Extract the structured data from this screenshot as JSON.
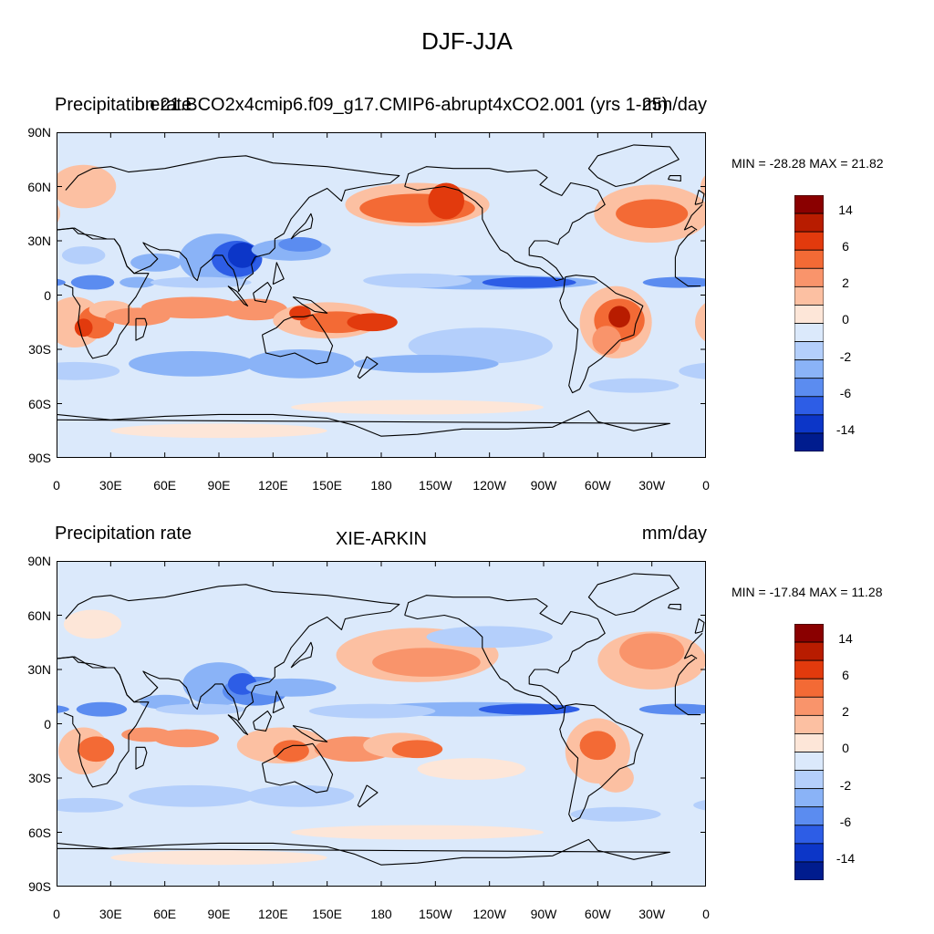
{
  "title": "DJF-JJA",
  "panels": [
    {
      "id": "top",
      "left_text": "Precipitation rate",
      "center_text": "b.e21.BCO2x4cmip6.f09_g17.CMIP6-abrupt4xCO2.001 (yrs 1-25)",
      "right_text": "mm/day",
      "minmax": "MIN = -28.28 MAX =  21.82"
    },
    {
      "id": "bottom",
      "left_text": "Precipitation rate",
      "center_text": "XIE-ARKIN",
      "right_text": "mm/day",
      "minmax": "MIN = -17.84 MAX =  11.28"
    }
  ],
  "lat_labels": [
    "90N",
    "60N",
    "30N",
    "0",
    "30S",
    "60S",
    "90S"
  ],
  "lon_labels": [
    "0",
    "30E",
    "60E",
    "90E",
    "120E",
    "150E",
    "180",
    "150W",
    "120W",
    "90W",
    "60W",
    "30W",
    "0"
  ],
  "colorbar": {
    "labels": [
      "14",
      "6",
      "2",
      "0",
      "-2",
      "-6",
      "-14"
    ],
    "colors": [
      "#8a0000",
      "#b81c00",
      "#e23a0d",
      "#f36a35",
      "#f9946b",
      "#fcc0a2",
      "#fde6d8",
      "#dbe9fb",
      "#b4cffb",
      "#8ab3f7",
      "#5b8cf0",
      "#2d5de6",
      "#0c36c8",
      "#001c8e"
    ]
  }
}
